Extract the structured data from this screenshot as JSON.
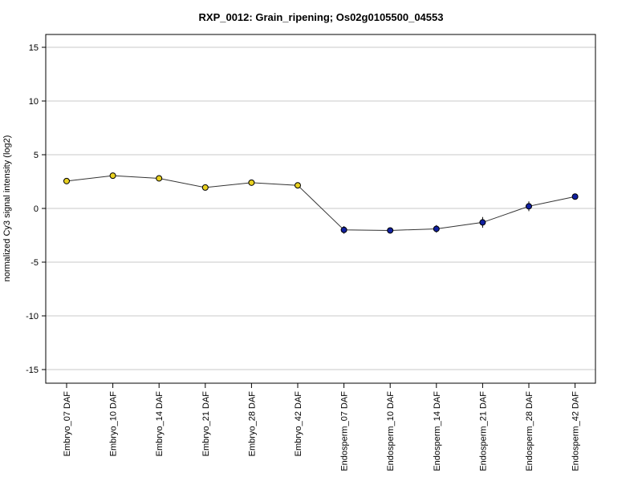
{
  "chart_data": {
    "type": "line",
    "title": "RXP_0012: Grain_ripening; Os02g0105500_04553",
    "xlabel": "",
    "ylabel": "normalized Cy3 signal intensity (log2)",
    "ylim": [
      -16,
      16
    ],
    "yticks": [
      -15,
      -10,
      -5,
      0,
      5,
      10,
      15
    ],
    "grid": "horizontal",
    "categories": [
      "Embryo_07 DAF",
      "Embryo_10 DAF",
      "Embryo_14 DAF",
      "Embryo_21 DAF",
      "Embryo_28 DAF",
      "Embryo_42 DAF",
      "Endosperm_07 DAF",
      "Endosperm_10 DAF",
      "Endosperm_14 DAF",
      "Endosperm_21 DAF",
      "Endosperm_28 DAF",
      "Endosperm_42 DAF"
    ],
    "series": [
      {
        "values": [
          2.55,
          3.05,
          2.8,
          1.95,
          2.4,
          2.15,
          -2.0,
          -2.05,
          -1.9,
          -1.3,
          0.2,
          1.1
        ],
        "errors": [
          0.15,
          0.1,
          0.1,
          0.1,
          0.15,
          0.1,
          0.35,
          0.15,
          0.35,
          0.5,
          0.45,
          0.25
        ],
        "colors": [
          "#e8d020",
          "#e8d020",
          "#e8d020",
          "#e8d020",
          "#e8d020",
          "#e8d020",
          "#1020a0",
          "#1020a0",
          "#1020a0",
          "#1020a0",
          "#1020a0",
          "#1020a0"
        ]
      }
    ]
  }
}
